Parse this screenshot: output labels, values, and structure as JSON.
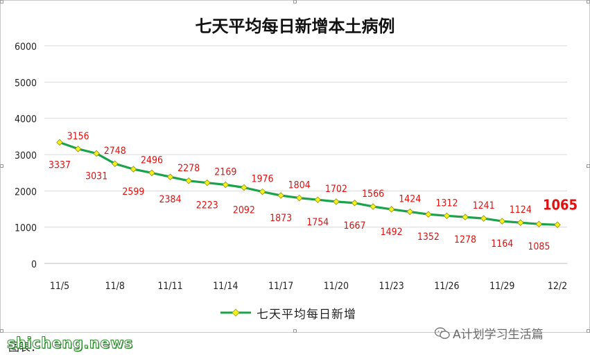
{
  "chart_data": {
    "type": "line",
    "title": "七天平均每日新增本土病例",
    "x": [
      "11/5",
      "11/6",
      "11/7",
      "11/8",
      "11/9",
      "11/10",
      "11/11",
      "11/12",
      "11/13",
      "11/14",
      "11/15",
      "11/16",
      "11/17",
      "11/18",
      "11/19",
      "11/20",
      "11/21",
      "11/22",
      "11/23",
      "11/24",
      "11/25",
      "11/26",
      "11/27",
      "11/28",
      "11/29",
      "11/30",
      "12/1",
      "12/2"
    ],
    "x_tick_labels": [
      "11/5",
      "11/8",
      "11/11",
      "11/14",
      "11/17",
      "11/20",
      "11/23",
      "11/26",
      "11/29",
      "12/2"
    ],
    "series": [
      {
        "name": "七天平均每日新增",
        "values": [
          3337,
          3156,
          3031,
          2748,
          2599,
          2496,
          2384,
          2278,
          2223,
          2169,
          2092,
          1976,
          1873,
          1804,
          1754,
          1702,
          1667,
          1566,
          1492,
          1424,
          1352,
          1312,
          1278,
          1241,
          1164,
          1124,
          1085,
          1065
        ]
      }
    ],
    "ylim": [
      0,
      6000
    ],
    "y_ticks": [
      0,
      1000,
      2000,
      3000,
      4000,
      5000,
      6000
    ],
    "grid": true,
    "legend_position": "bottom",
    "line_color": "#1aa34a",
    "marker_color": "#f2f21a",
    "label_color": "#e01010",
    "highlight_last_value": true
  },
  "watermark": {
    "wechat_text": "A计划学习生活篇"
  },
  "footer": {
    "source_text": "图表：",
    "site_text": "shicheng.news"
  }
}
